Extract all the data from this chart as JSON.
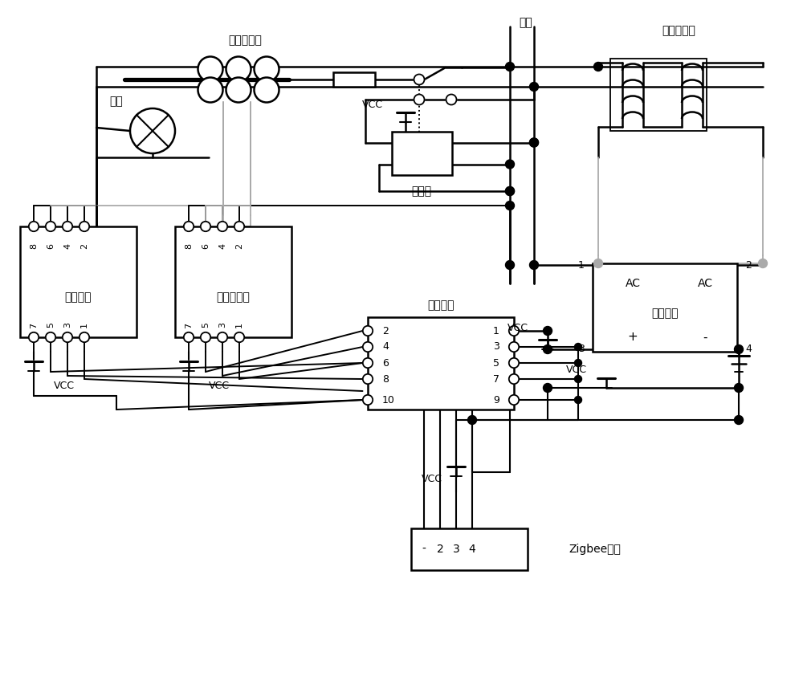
{
  "bg": "#ffffff",
  "lc": "#000000",
  "gc": "#aaaaaa",
  "grn": "#007700",
  "labels": {
    "road_lamp": "路灯",
    "current_xfmr": "电流互感器",
    "voltage_xfmr": "电压互感器",
    "relay": "继电器",
    "input": "输入",
    "vcc": "VCC",
    "dim_module": "调光模块",
    "elec_module": "电参数检测",
    "ctrl_module": "控制模块",
    "pwr_module": "电源模块",
    "zigbee": "Zigbee天线",
    "ac": "AC",
    "plus": "+",
    "minus": "-"
  }
}
